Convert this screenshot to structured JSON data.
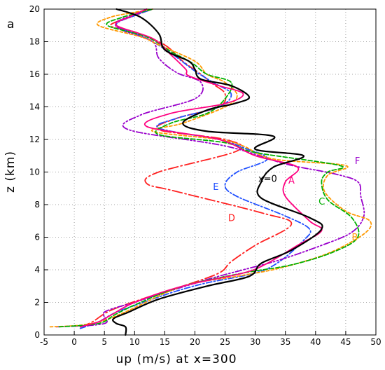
{
  "panel_label": "a",
  "chart_data": {
    "type": "line",
    "title": "",
    "xlabel": "up  (m/s)  at  x=300",
    "ylabel": "z  (km)",
    "xlim": [
      -5,
      50
    ],
    "ylim": [
      0,
      20
    ],
    "xticks": [
      -5,
      0,
      5,
      10,
      15,
      20,
      25,
      30,
      35,
      40,
      45,
      50
    ],
    "yticks": [
      0,
      2,
      4,
      6,
      8,
      10,
      12,
      14,
      16,
      18,
      20
    ],
    "grid": true,
    "legend": "inline labels next to curves",
    "series": [
      {
        "name": "x=0",
        "color": "#000000",
        "dash": "solid",
        "label_pos": [
          30.5,
          9.4
        ],
        "points": [
          [
            8.5,
            0
          ],
          [
            8.5,
            0.5
          ],
          [
            7,
            0.7
          ],
          [
            6.5,
            1.0
          ],
          [
            9,
            1.4
          ],
          [
            14,
            2.2
          ],
          [
            22,
            3.0
          ],
          [
            29,
            3.6
          ],
          [
            31,
            4.4
          ],
          [
            36,
            5.2
          ],
          [
            41,
            6.5
          ],
          [
            39,
            7.2
          ],
          [
            31,
            8.4
          ],
          [
            31,
            9.4
          ],
          [
            33,
            10.3
          ],
          [
            38,
            11.0
          ],
          [
            30,
            11.4
          ],
          [
            33,
            12.2
          ],
          [
            22,
            12.5
          ],
          [
            18,
            13.0
          ],
          [
            22,
            13.8
          ],
          [
            26.5,
            14.2
          ],
          [
            29,
            14.6
          ],
          [
            26,
            15.3
          ],
          [
            21,
            15.7
          ],
          [
            20,
            16.3
          ],
          [
            19,
            16.8
          ],
          [
            15,
            17.5
          ],
          [
            14,
            18.5
          ],
          [
            11,
            19.5
          ],
          [
            7,
            20
          ]
        ]
      },
      {
        "name": "A",
        "color": "#ff0080",
        "dash": "solid",
        "label_pos": [
          35.5,
          9.3
        ],
        "points": [
          [
            1,
            0.5
          ],
          [
            4,
            0.8
          ],
          [
            6,
            1.2
          ],
          [
            10,
            2.0
          ],
          [
            18,
            3.0
          ],
          [
            28,
            3.8
          ],
          [
            32,
            4.4
          ],
          [
            37,
            5.5
          ],
          [
            41,
            6.4
          ],
          [
            39,
            7.0
          ],
          [
            35,
            8.5
          ],
          [
            35,
            9.4
          ],
          [
            37,
            10.3
          ],
          [
            30,
            11.0
          ],
          [
            24,
            12.0
          ],
          [
            12,
            12.8
          ],
          [
            16,
            13.6
          ],
          [
            25,
            14.2
          ],
          [
            28,
            14.8
          ],
          [
            24,
            15.3
          ],
          [
            19,
            15.9
          ],
          [
            18.5,
            16.3
          ],
          [
            16,
            17.2
          ],
          [
            13,
            18.2
          ],
          [
            7,
            19.0
          ],
          [
            9,
            19.5
          ],
          [
            12,
            20
          ]
        ]
      },
      {
        "name": "B",
        "color": "#ff9900",
        "dash": "4,3",
        "label_pos": [
          46.0,
          5.8
        ],
        "points": [
          [
            -4,
            0.5
          ],
          [
            1,
            0.6
          ],
          [
            5,
            0.9
          ],
          [
            9,
            1.5
          ],
          [
            18,
            3.0
          ],
          [
            27,
            3.6
          ],
          [
            34,
            4.1
          ],
          [
            42,
            5.0
          ],
          [
            48,
            6.2
          ],
          [
            49,
            7.0
          ],
          [
            45,
            7.6
          ],
          [
            41.5,
            8.8
          ],
          [
            42,
            9.8
          ],
          [
            45,
            10.4
          ],
          [
            33,
            10.8
          ],
          [
            28,
            11.6
          ],
          [
            24,
            12.0
          ],
          [
            13,
            12.5
          ],
          [
            18,
            13.0
          ],
          [
            25,
            14.0
          ],
          [
            27,
            14.7
          ],
          [
            25,
            15.5
          ],
          [
            22,
            16.0
          ],
          [
            20,
            16.8
          ],
          [
            14,
            17.8
          ],
          [
            11,
            18.3
          ],
          [
            4,
            19.0
          ],
          [
            6,
            19.5
          ],
          [
            10,
            19.8
          ],
          [
            13,
            20
          ]
        ]
      },
      {
        "name": "C",
        "color": "#00b000",
        "dash": "6,3",
        "label_pos": [
          40.5,
          8.0
        ],
        "points": [
          [
            -2.5,
            0.5
          ],
          [
            4,
            0.7
          ],
          [
            7,
            1.3
          ],
          [
            11,
            2.0
          ],
          [
            18,
            3.0
          ],
          [
            28,
            3.8
          ],
          [
            36,
            4.3
          ],
          [
            43,
            5.1
          ],
          [
            47,
            6.0
          ],
          [
            46,
            7.2
          ],
          [
            42,
            8.3
          ],
          [
            41,
            9.4
          ],
          [
            42,
            10.0
          ],
          [
            44,
            10.4
          ],
          [
            30,
            11.2
          ],
          [
            25,
            11.8
          ],
          [
            14,
            12.3
          ],
          [
            16,
            13.0
          ],
          [
            22,
            13.6
          ],
          [
            25,
            14.5
          ],
          [
            26,
            15.5
          ],
          [
            22,
            16.0
          ],
          [
            19.5,
            16.7
          ],
          [
            16,
            17.4
          ],
          [
            12,
            18.3
          ],
          [
            5.5,
            19.0
          ],
          [
            8,
            19.5
          ],
          [
            13,
            20
          ]
        ]
      },
      {
        "name": "D",
        "color": "#ff2020",
        "dash": "14,4,2,4",
        "label_pos": [
          25.5,
          7.0
        ],
        "points": [
          [
            1,
            0.5
          ],
          [
            3,
            0.8
          ],
          [
            6,
            1.5
          ],
          [
            12,
            2.3
          ],
          [
            18,
            3.0
          ],
          [
            24,
            3.8
          ],
          [
            26,
            4.5
          ],
          [
            30,
            5.5
          ],
          [
            36,
            6.8
          ],
          [
            31,
            7.5
          ],
          [
            17,
            8.8
          ],
          [
            12,
            9.3
          ],
          [
            14,
            10.0
          ],
          [
            27,
            11.3
          ],
          [
            25,
            12.0
          ],
          [
            14,
            12.6
          ],
          [
            17,
            13.3
          ],
          [
            24,
            14.0
          ],
          [
            25,
            14.8
          ],
          [
            23,
            15.4
          ],
          [
            21,
            16.0
          ],
          [
            18,
            16.8
          ],
          [
            15,
            17.8
          ],
          [
            10,
            18.6
          ],
          [
            6,
            19.0
          ],
          [
            10,
            19.6
          ],
          [
            13,
            20
          ]
        ]
      },
      {
        "name": "E",
        "color": "#2050ff",
        "dash": "8,3,2,3",
        "label_pos": [
          23.0,
          8.9
        ],
        "points": [
          [
            1,
            0.4
          ],
          [
            4,
            0.8
          ],
          [
            7,
            1.4
          ],
          [
            13,
            2.2
          ],
          [
            17,
            2.7
          ],
          [
            22,
            3.2
          ],
          [
            30,
            3.8
          ],
          [
            34,
            4.5
          ],
          [
            38,
            5.8
          ],
          [
            39,
            6.5
          ],
          [
            35,
            7.3
          ],
          [
            27,
            8.5
          ],
          [
            25,
            9.2
          ],
          [
            27,
            10.0
          ],
          [
            32,
            10.8
          ],
          [
            28,
            11.5
          ],
          [
            24,
            12.0
          ],
          [
            14,
            12.7
          ],
          [
            17,
            13.3
          ],
          [
            24,
            14.0
          ],
          [
            26,
            14.8
          ],
          [
            23,
            15.5
          ],
          [
            20,
            16.2
          ],
          [
            16,
            17.3
          ],
          [
            12,
            18.2
          ],
          [
            7,
            19.0
          ],
          [
            10,
            19.6
          ],
          [
            13,
            20
          ]
        ]
      },
      {
        "name": "F",
        "color": "#9900cc",
        "dash": "9,3,2,3,2,3",
        "label_pos": [
          46.5,
          10.5
        ],
        "points": [
          [
            -3,
            0.5
          ],
          [
            5,
            0.7
          ],
          [
            5,
            1.4
          ],
          [
            10,
            2.0
          ],
          [
            15,
            2.6
          ],
          [
            22,
            3.4
          ],
          [
            28,
            4.0
          ],
          [
            34,
            4.6
          ],
          [
            41,
            5.5
          ],
          [
            46,
            6.3
          ],
          [
            48,
            7.3
          ],
          [
            47.5,
            8.5
          ],
          [
            47,
            9.4
          ],
          [
            43,
            9.9
          ],
          [
            35,
            10.5
          ],
          [
            25,
            11.6
          ],
          [
            9,
            12.6
          ],
          [
            11,
            13.5
          ],
          [
            20,
            14.5
          ],
          [
            21,
            15.5
          ],
          [
            17,
            16.1
          ],
          [
            14,
            17.0
          ],
          [
            13,
            18.0
          ],
          [
            8,
            18.7
          ],
          [
            7,
            19.2
          ],
          [
            11,
            19.8
          ],
          [
            12,
            20
          ]
        ]
      }
    ]
  }
}
